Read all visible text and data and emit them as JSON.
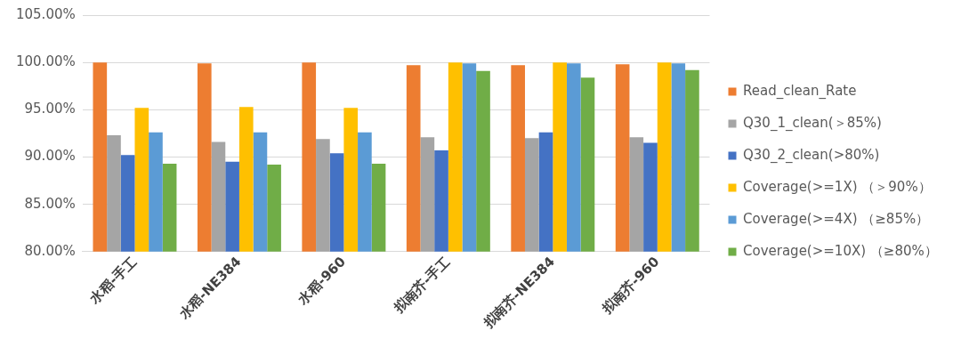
{
  "chart_data": {
    "type": "bar",
    "categories": [
      "水稻-手工",
      "水稻-NE384",
      "水稻-960",
      "拟南芥-手工",
      "拟南芥-NE384",
      "拟南芥-960"
    ],
    "series": [
      {
        "name": "Read_clean_Rate",
        "color": "#ed7d31",
        "values": [
          100,
          99.9,
          100,
          99.7,
          99.7,
          99.8
        ]
      },
      {
        "name": "Q30_1_clean(＞85%)",
        "color": "#a5a5a5",
        "values": [
          92.3,
          91.6,
          91.9,
          92.1,
          92.0,
          92.1
        ]
      },
      {
        "name": "Q30_2_clean(>80%)",
        "color": "#4472c4",
        "values": [
          90.2,
          89.5,
          90.4,
          90.7,
          92.6,
          91.5
        ]
      },
      {
        "name": "Coverage(>=1X) （＞90%）",
        "color": "#ffc000",
        "values": [
          95.2,
          95.3,
          95.2,
          100,
          100,
          100
        ]
      },
      {
        "name": "Coverage(>=4X) （≥85%）",
        "color": "#5b9bd5",
        "values": [
          92.6,
          92.6,
          92.6,
          99.9,
          99.9,
          99.9
        ]
      },
      {
        "name": "Coverage(>=10X) （≥80%）",
        "color": "#70ad47",
        "values": [
          89.3,
          89.2,
          89.3,
          99.1,
          98.4,
          99.2
        ]
      }
    ],
    "ylim": [
      80,
      105
    ],
    "yticks": [
      {
        "value": 80,
        "label": "80.00%"
      },
      {
        "value": 85,
        "label": "85.00%"
      },
      {
        "value": 90,
        "label": "90.00%"
      },
      {
        "value": 95,
        "label": "95.00%"
      },
      {
        "value": 100,
        "label": "100.00%"
      },
      {
        "value": 105,
        "label": "105.00%"
      }
    ],
    "grid": "y",
    "legend": "right"
  }
}
